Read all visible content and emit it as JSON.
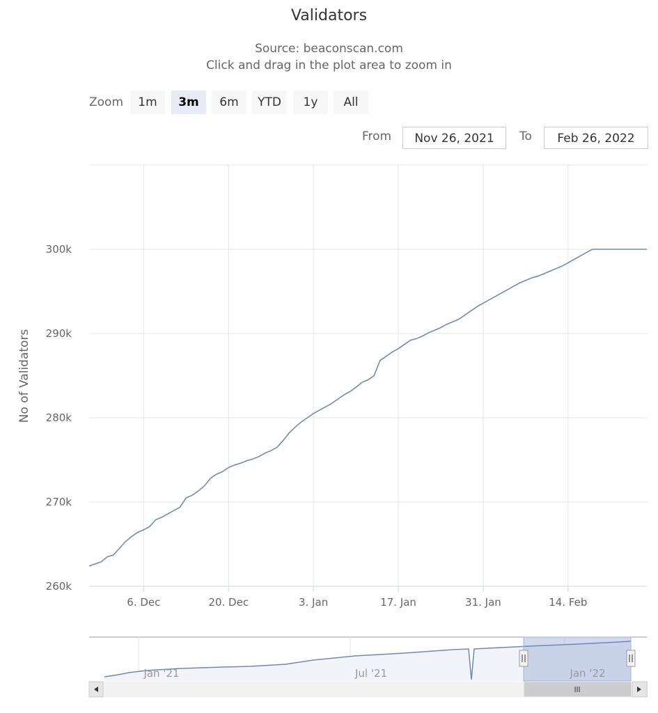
{
  "header": {
    "title": "Validators",
    "source": "Source: beaconscan.com",
    "hint": "Click and drag in the plot area to zoom in"
  },
  "range_selector": {
    "zoom_label": "Zoom",
    "buttons": [
      "1m",
      "3m",
      "6m",
      "YTD",
      "1y",
      "All"
    ],
    "active": "3m",
    "from_label": "From",
    "from_value": "Nov 26, 2021",
    "to_label": "To",
    "to_value": "Feb 26, 2022"
  },
  "colors": {
    "line": "#6f8ab2",
    "grid": "#e6e6e6",
    "navigator_mask": "rgba(102,133,194,0.3)",
    "active_button": "#e6ebf5"
  },
  "chart_data": {
    "type": "line",
    "title": "Validators",
    "ylabel": "No of Validators",
    "xlabel": "",
    "ylim": [
      260000,
      310000
    ],
    "yticks": [
      {
        "value": 260000,
        "label": "260k"
      },
      {
        "value": 270000,
        "label": "270k"
      },
      {
        "value": 280000,
        "label": "280k"
      },
      {
        "value": 290000,
        "label": "290k"
      },
      {
        "value": 300000,
        "label": "300k"
      }
    ],
    "xlim_days": [
      0,
      92
    ],
    "xticks": [
      {
        "day": 9,
        "label": "6. Dec"
      },
      {
        "day": 23,
        "label": "20. Dec"
      },
      {
        "day": 37,
        "label": "3. Jan"
      },
      {
        "day": 51,
        "label": "17. Jan"
      },
      {
        "day": 65,
        "label": "31. Jan"
      },
      {
        "day": 79,
        "label": "14. Feb"
      }
    ],
    "grid": true,
    "legend": false,
    "series": [
      {
        "name": "Validators",
        "x_days": [
          0,
          2,
          3,
          4,
          5,
          6,
          7,
          8,
          9,
          10,
          11,
          12,
          13,
          14,
          15,
          16,
          17,
          18,
          19,
          20,
          21,
          22,
          23,
          24,
          25,
          26,
          27,
          28,
          29,
          30,
          31,
          32,
          33,
          34,
          35,
          36,
          37,
          38,
          39,
          40,
          41,
          42,
          43,
          44,
          45,
          46,
          47,
          48,
          49,
          50,
          51,
          52,
          53,
          54,
          55,
          56,
          57,
          58,
          59,
          60,
          61,
          62,
          63,
          64,
          65,
          66,
          67,
          68,
          69,
          70,
          71,
          72,
          73,
          74,
          75,
          76,
          77,
          78,
          79,
          80,
          81,
          82,
          83,
          84,
          85,
          86,
          87,
          88,
          89,
          90,
          91,
          92
        ],
        "values": [
          262400,
          262900,
          263500,
          263700,
          264500,
          265300,
          265900,
          266400,
          266700,
          267100,
          267900,
          268200,
          268600,
          269000,
          269400,
          270500,
          270800,
          271300,
          271900,
          272800,
          273300,
          273600,
          274100,
          274400,
          274600,
          274900,
          275100,
          275400,
          275800,
          276100,
          276500,
          277300,
          278200,
          278900,
          279500,
          280000,
          280500,
          280900,
          281300,
          281700,
          282200,
          282700,
          283100,
          283600,
          284200,
          284500,
          285000,
          286800,
          287300,
          287800,
          288200,
          288700,
          289200,
          289400,
          289700,
          290100,
          290400,
          290700,
          291100,
          291400,
          291700,
          292200,
          292700,
          293200,
          293600,
          294000,
          294400,
          294800,
          295200,
          295600,
          296000,
          296300,
          296600,
          296800,
          297100,
          297400,
          297700,
          298000,
          298400,
          298800,
          299200,
          299600,
          300000,
          300000,
          300000,
          300000,
          300000,
          300000,
          300000,
          300000,
          300000,
          300000
        ]
      }
    ],
    "navigator": {
      "xticks": [
        "Jan '21",
        "Jul '21",
        "Jan '22"
      ]
    }
  }
}
